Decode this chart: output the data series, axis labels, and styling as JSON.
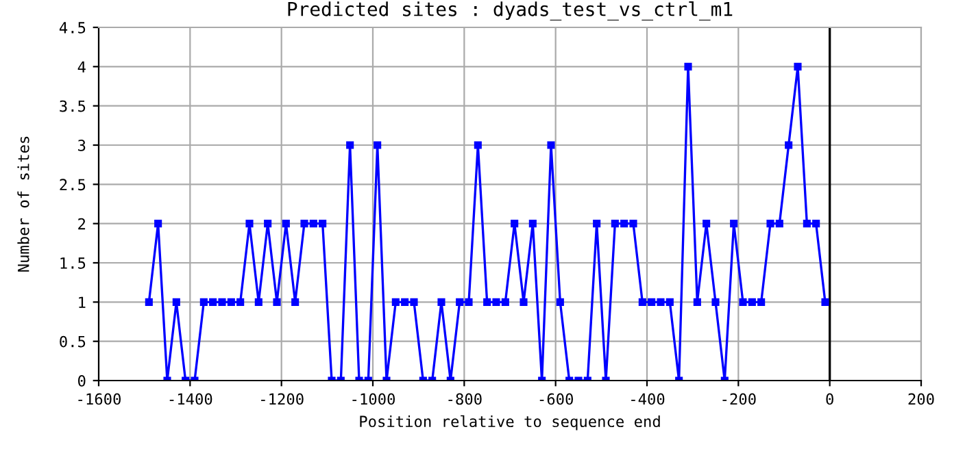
{
  "chart_data": {
    "type": "line",
    "title": "Predicted sites : dyads_test_vs_ctrl_m1",
    "xlabel": "Position relative to sequence end",
    "ylabel": "Number of sites",
    "x": [
      -1490,
      -1470,
      -1450,
      -1430,
      -1410,
      -1390,
      -1370,
      -1350,
      -1330,
      -1310,
      -1290,
      -1270,
      -1250,
      -1230,
      -1210,
      -1190,
      -1170,
      -1150,
      -1130,
      -1110,
      -1090,
      -1070,
      -1050,
      -1030,
      -1010,
      -990,
      -970,
      -950,
      -930,
      -910,
      -890,
      -870,
      -850,
      -830,
      -810,
      -790,
      -770,
      -750,
      -730,
      -710,
      -690,
      -670,
      -650,
      -630,
      -610,
      -590,
      -570,
      -550,
      -530,
      -510,
      -490,
      -470,
      -450,
      -430,
      -410,
      -390,
      -370,
      -350,
      -330,
      -310,
      -290,
      -270,
      -250,
      -230,
      -210,
      -190,
      -170,
      -150,
      -130,
      -110,
      -90,
      -70,
      -50,
      -30,
      -10
    ],
    "series": [
      {
        "color": "#0000ff",
        "values": [
          1,
          2,
          0,
          1,
          0,
          0,
          1,
          1,
          1,
          1,
          1,
          2,
          1,
          2,
          1,
          2,
          1,
          2,
          2,
          2,
          0,
          0,
          3,
          0,
          0,
          3,
          0,
          1,
          1,
          1,
          0,
          0,
          1,
          0,
          1,
          1,
          3,
          1,
          1,
          1,
          2,
          1,
          2,
          0,
          3,
          1,
          0,
          0,
          0,
          2,
          0,
          2,
          2,
          2,
          1,
          1,
          1,
          1,
          0,
          4,
          1,
          2,
          1,
          0,
          2,
          1,
          1,
          1,
          2,
          2,
          3,
          4,
          2,
          2,
          1
        ]
      }
    ],
    "xlim": [
      -1600,
      200
    ],
    "xticks": [
      -1600,
      -1400,
      -1200,
      -1000,
      -800,
      -600,
      -400,
      -200,
      0,
      200
    ],
    "ylim": [
      0,
      4.5
    ],
    "yticks": [
      0,
      0.5,
      1,
      1.5,
      2,
      2.5,
      3,
      3.5,
      4,
      4.5
    ],
    "ref_lines": [
      {
        "axis": "x",
        "value": 0,
        "color": "#000000"
      }
    ],
    "grid": true,
    "marker": "square",
    "line_style": "solid"
  }
}
